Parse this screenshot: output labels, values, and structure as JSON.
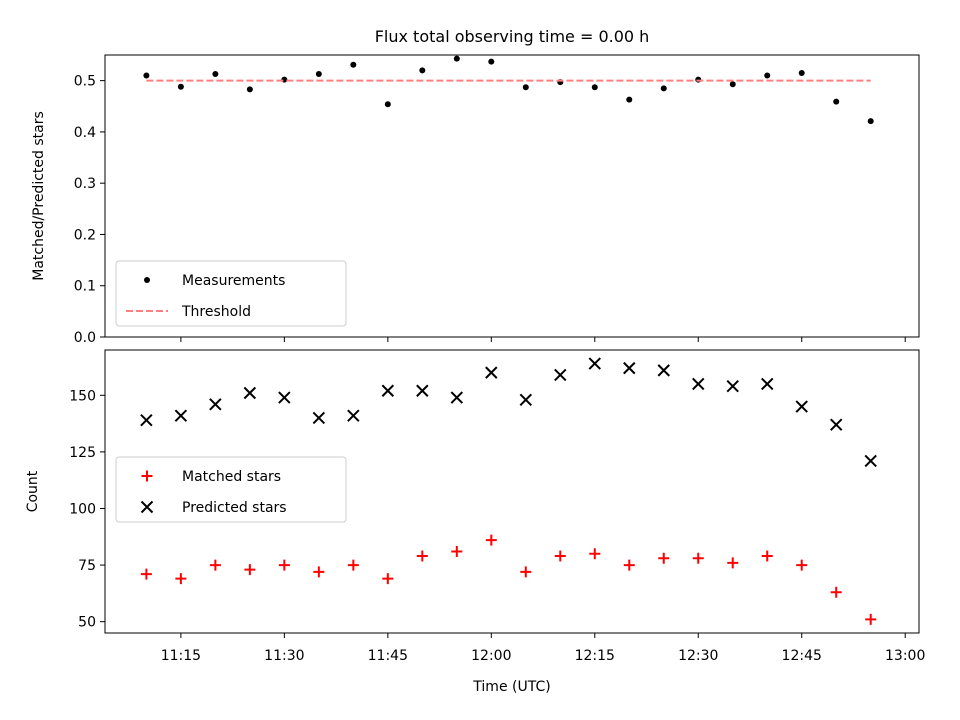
{
  "title": "Flux total observing time = 0.00 h",
  "chart_data": [
    {
      "type": "scatter",
      "ylabel": "Matched/Predicted stars",
      "xlabel": "",
      "ylim": [
        0,
        0.55
      ],
      "yticks": [
        "0.0",
        "0.1",
        "0.2",
        "0.3",
        "0.4",
        "0.5"
      ],
      "xtick_labels_shown": false,
      "legend": {
        "placement": "lower-left",
        "entries": [
          "Measurements",
          "Threshold"
        ]
      },
      "series": [
        {
          "name": "Measurements",
          "marker": "dot",
          "color": "#000000",
          "x": [
            "11:10",
            "11:15",
            "11:20",
            "11:25",
            "11:30",
            "11:35",
            "11:40",
            "11:45",
            "11:50",
            "11:55",
            "12:00",
            "12:05",
            "12:10",
            "12:15",
            "12:20",
            "12:25",
            "12:30",
            "12:35",
            "12:40",
            "12:45",
            "12:50",
            "12:55"
          ],
          "y": [
            0.51,
            0.488,
            0.513,
            0.483,
            0.502,
            0.513,
            0.531,
            0.454,
            0.52,
            0.543,
            0.537,
            0.487,
            0.497,
            0.487,
            0.463,
            0.485,
            0.502,
            0.493,
            0.51,
            0.515,
            0.459,
            0.421
          ]
        },
        {
          "name": "Threshold",
          "style": "dashed",
          "color": "#ff7f7f",
          "x": [
            "11:10",
            "12:55"
          ],
          "y": [
            0.5,
            0.5
          ]
        }
      ]
    },
    {
      "type": "scatter",
      "ylabel": "Count",
      "xlabel": "Time (UTC)",
      "ylim": [
        45,
        170
      ],
      "yticks": [
        "50",
        "75",
        "100",
        "125",
        "150"
      ],
      "xticks": [
        "11:15",
        "11:30",
        "11:45",
        "12:00",
        "12:15",
        "12:30",
        "12:45",
        "13:00"
      ],
      "xlim": [
        "11:04",
        "13:02"
      ],
      "legend": {
        "placement": "center-left",
        "entries": [
          "Matched stars",
          "Predicted stars"
        ]
      },
      "series": [
        {
          "name": "Matched stars",
          "marker": "plus",
          "color": "#ff0000",
          "x": [
            "11:10",
            "11:15",
            "11:20",
            "11:25",
            "11:30",
            "11:35",
            "11:40",
            "11:45",
            "11:50",
            "11:55",
            "12:00",
            "12:05",
            "12:10",
            "12:15",
            "12:20",
            "12:25",
            "12:30",
            "12:35",
            "12:40",
            "12:45",
            "12:50",
            "12:55"
          ],
          "y": [
            71,
            69,
            75,
            73,
            75,
            72,
            75,
            69,
            79,
            81,
            86,
            72,
            79,
            80,
            75,
            78,
            78,
            76,
            79,
            75,
            63,
            51
          ]
        },
        {
          "name": "Predicted stars",
          "marker": "x",
          "color": "#000000",
          "x": [
            "11:10",
            "11:15",
            "11:20",
            "11:25",
            "11:30",
            "11:35",
            "11:40",
            "11:45",
            "11:50",
            "11:55",
            "12:00",
            "12:05",
            "12:10",
            "12:15",
            "12:20",
            "12:25",
            "12:30",
            "12:35",
            "12:40",
            "12:45",
            "12:50",
            "12:55"
          ],
          "y": [
            139,
            141,
            146,
            151,
            149,
            140,
            141,
            152,
            152,
            149,
            160,
            148,
            159,
            164,
            162,
            161,
            155,
            154,
            155,
            145,
            137,
            121
          ]
        }
      ]
    }
  ]
}
